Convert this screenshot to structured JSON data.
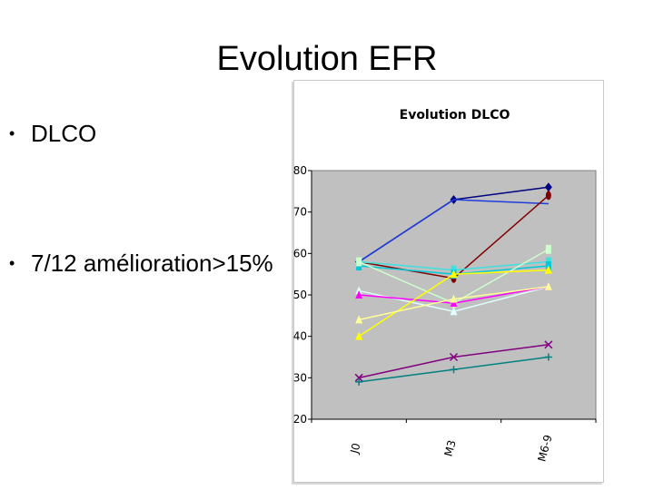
{
  "slide": {
    "title": "Evolution EFR",
    "bullets": [
      {
        "marker": "•",
        "text": "DLCO"
      },
      {
        "marker": "•",
        "text": "7/12 amélioration>15%"
      }
    ]
  },
  "chart_data": {
    "type": "line",
    "title": "Evolution DLCO",
    "categories": [
      "J0",
      "M3",
      "M6-9"
    ],
    "ylim": [
      20,
      80
    ],
    "yticks": [
      20,
      30,
      40,
      50,
      60,
      70,
      80
    ],
    "grid": false,
    "legend": "none",
    "plot_background": "#c0c0c0",
    "series": [
      {
        "values": [
          58,
          73,
          76
        ],
        "color": "#000080",
        "marker": "diamond"
      },
      {
        "values": [
          58,
          73,
          72
        ],
        "color": "#1e3cdc",
        "marker": "none"
      },
      {
        "values": [
          58,
          54,
          74
        ],
        "color": "#800000",
        "marker": "circle"
      },
      {
        "values": [
          58,
          56,
          58
        ],
        "color": "#40e0e0",
        "marker": "square"
      },
      {
        "values": [
          57,
          55,
          57
        ],
        "color": "#00c8d8",
        "marker": "square"
      },
      {
        "values": [
          58,
          48,
          61
        ],
        "color": "#ccffcc",
        "marker": "square"
      },
      {
        "values": [
          51,
          46,
          52
        ],
        "color": "#e0ffff",
        "marker": "triangle"
      },
      {
        "values": [
          50,
          48,
          52
        ],
        "color": "#ff00ff",
        "marker": "triangle"
      },
      {
        "values": [
          40,
          55,
          56
        ],
        "color": "#ffff00",
        "marker": "triangle"
      },
      {
        "values": [
          44,
          49,
          52
        ],
        "color": "#ffff99",
        "marker": "triangle"
      },
      {
        "values": [
          30,
          35,
          38
        ],
        "color": "#800080",
        "marker": "x"
      },
      {
        "values": [
          29,
          32,
          35
        ],
        "color": "#008080",
        "marker": "plus"
      }
    ]
  }
}
